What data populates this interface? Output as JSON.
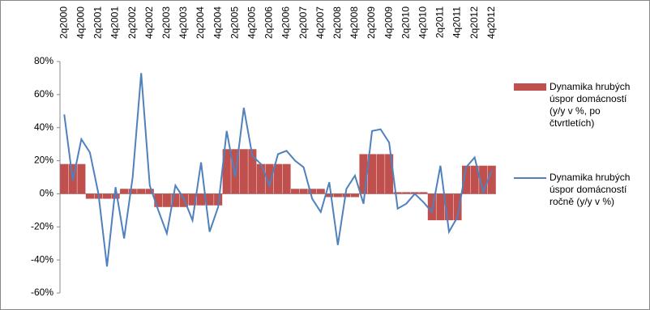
{
  "chart_data": {
    "type": "bar_line",
    "categories": [
      "2q2000",
      null,
      "4q2000",
      null,
      "2q2001",
      null,
      "4q2001",
      null,
      "2q2002",
      null,
      "4q2002",
      null,
      "2q2003",
      null,
      "4q2003",
      null,
      "2q2004",
      null,
      "4q2004",
      null,
      "2q2005",
      null,
      "4q2005",
      null,
      "2q2006",
      null,
      "4q2006",
      null,
      "2q2007",
      null,
      "4q2007",
      null,
      "2q2008",
      null,
      "4q2008",
      null,
      "2q2009",
      null,
      "4q2009",
      null,
      "2q2010",
      null,
      "4q2010",
      null,
      "2q2011",
      null,
      "4q2011",
      null,
      "2q2012",
      null,
      "4q2012"
    ],
    "series": [
      {
        "name": "Dynamika hrubých úspor domácností (y/y v %, po čtvrtletích)",
        "color": "#c0504d",
        "kind": "bar",
        "values": [
          18,
          18,
          18,
          -3,
          -3,
          -3,
          -3,
          3,
          3,
          3,
          3,
          -8,
          -8,
          -8,
          -8,
          -7,
          -7,
          -7,
          -7,
          27,
          27,
          27,
          27,
          18,
          18,
          18,
          18,
          3,
          3,
          3,
          3,
          -2,
          -2,
          -2,
          -2,
          24,
          24,
          24,
          24,
          1,
          1,
          1,
          1,
          -16,
          -16,
          -16,
          -16,
          17,
          17,
          17,
          17
        ]
      },
      {
        "name": "Dynamika hrubých úspor domácností ročně (y/y v %)",
        "color": "#4f81bd",
        "kind": "line",
        "values": [
          48,
          8,
          33,
          25,
          0,
          -44,
          4,
          -27,
          10,
          73,
          5,
          -10,
          -24,
          5,
          -3,
          -16,
          19,
          -23,
          -8,
          38,
          10,
          52,
          23,
          18,
          5,
          24,
          26,
          20,
          16,
          -3,
          -11,
          7,
          -31,
          3,
          11,
          -6,
          38,
          39,
          31,
          -9,
          -6,
          0,
          -5,
          -11,
          17,
          -23,
          -14,
          16,
          22,
          1,
          14
        ]
      }
    ],
    "ylim": [
      -60,
      80
    ],
    "yticks": [
      {
        "value": -60,
        "label": "-60%"
      },
      {
        "value": -40,
        "label": "-40%"
      },
      {
        "value": -20,
        "label": "-20%"
      },
      {
        "value": 0,
        "label": "0%"
      },
      {
        "value": 20,
        "label": "20%"
      },
      {
        "value": 40,
        "label": "40%"
      },
      {
        "value": 60,
        "label": "60%"
      },
      {
        "value": 80,
        "label": "80%"
      }
    ],
    "legend": "right"
  }
}
